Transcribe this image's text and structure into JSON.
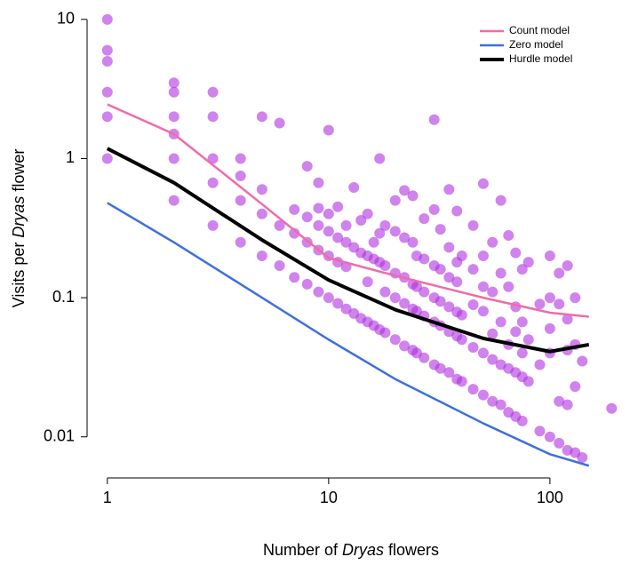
{
  "chart_data": {
    "type": "scatter",
    "xlabel": [
      "Number of ",
      "Dryas",
      " flowers"
    ],
    "ylabel": [
      "Visits per ",
      "Dryas",
      " flower"
    ],
    "xlog": true,
    "ylog": true,
    "xlim": [
      0.81,
      193
    ],
    "ylim": [
      0.0066,
      11.9
    ],
    "xticks": [
      1,
      10,
      100
    ],
    "yticks": [
      0.01,
      0.1,
      1,
      10
    ],
    "legend": "top-right",
    "points": {
      "color": "#b030e0",
      "x": [
        1,
        1,
        1,
        1,
        1,
        1,
        2,
        2,
        2,
        2,
        2,
        2,
        3,
        3,
        3,
        3,
        3,
        4,
        4,
        4,
        4,
        5,
        5,
        5,
        5,
        6,
        6,
        6,
        7,
        7,
        7,
        8,
        8,
        8,
        8,
        9,
        9,
        9,
        9,
        9,
        10,
        10,
        10,
        10,
        10,
        11,
        11,
        11,
        11,
        12,
        12,
        12,
        12,
        13,
        13,
        13,
        14,
        14,
        14,
        15,
        15,
        15,
        15,
        16,
        16,
        16,
        17,
        17,
        17,
        17,
        18,
        18,
        18,
        18,
        20,
        20,
        20,
        20,
        20,
        22,
        22,
        22,
        22,
        22,
        24,
        24,
        24,
        24,
        24,
        25,
        25,
        25,
        25,
        27,
        27,
        27,
        27,
        27,
        30,
        30,
        30,
        30,
        30,
        30,
        32,
        32,
        32,
        32,
        32,
        35,
        35,
        35,
        35,
        35,
        35,
        38,
        38,
        38,
        38,
        38,
        38,
        40,
        40,
        40,
        40,
        45,
        45,
        45,
        45,
        45,
        50,
        50,
        50,
        50,
        50,
        50,
        55,
        55,
        55,
        55,
        55,
        60,
        60,
        60,
        60,
        60,
        65,
        65,
        65,
        65,
        65,
        70,
        70,
        70,
        70,
        70,
        75,
        75,
        75,
        75,
        75,
        80,
        80,
        80,
        90,
        90,
        90,
        100,
        100,
        100,
        100,
        100,
        110,
        110,
        110,
        110,
        120,
        120,
        120,
        120,
        120,
        130,
        130,
        130,
        130,
        140,
        140,
        190
      ],
      "values": [
        10,
        6,
        5,
        3,
        2,
        1,
        3.5,
        3,
        2,
        1.5,
        1,
        0.5,
        3,
        2,
        1,
        0.67,
        0.33,
        1,
        0.75,
        0.5,
        0.25,
        2,
        0.6,
        0.4,
        0.2,
        1.8,
        0.33,
        0.17,
        0.43,
        0.29,
        0.14,
        0.88,
        0.38,
        0.25,
        0.125,
        0.67,
        0.44,
        0.33,
        0.22,
        0.11,
        1.6,
        0.4,
        0.3,
        0.2,
        0.1,
        0.45,
        0.27,
        0.18,
        0.091,
        0.33,
        0.25,
        0.167,
        0.083,
        0.62,
        0.23,
        0.077,
        0.36,
        0.21,
        0.071,
        0.4,
        0.2,
        0.13,
        0.067,
        0.25,
        0.19,
        0.063,
        1.0,
        0.29,
        0.18,
        0.059,
        0.33,
        0.17,
        0.11,
        0.056,
        0.5,
        0.3,
        0.15,
        0.1,
        0.05,
        0.59,
        0.27,
        0.14,
        0.091,
        0.045,
        0.54,
        0.25,
        0.125,
        0.083,
        0.042,
        0.2,
        0.12,
        0.08,
        0.04,
        0.37,
        0.19,
        0.11,
        0.074,
        0.037,
        1.9,
        0.43,
        0.17,
        0.1,
        0.067,
        0.033,
        0.31,
        0.16,
        0.094,
        0.063,
        0.031,
        0.6,
        0.23,
        0.14,
        0.086,
        0.057,
        0.029,
        0.42,
        0.18,
        0.13,
        0.079,
        0.053,
        0.026,
        0.2,
        0.075,
        0.05,
        0.025,
        0.33,
        0.16,
        0.089,
        0.044,
        0.022,
        0.66,
        0.2,
        0.12,
        0.08,
        0.04,
        0.02,
        0.25,
        0.11,
        0.055,
        0.036,
        0.018,
        0.5,
        0.15,
        0.067,
        0.033,
        0.017,
        0.28,
        0.12,
        0.046,
        0.031,
        0.015,
        0.21,
        0.086,
        0.057,
        0.029,
        0.014,
        0.16,
        0.067,
        0.04,
        0.027,
        0.013,
        0.18,
        0.05,
        0.025,
        0.09,
        0.033,
        0.011,
        0.2,
        0.1,
        0.06,
        0.04,
        0.01,
        0.15,
        0.09,
        0.018,
        0.009,
        0.17,
        0.07,
        0.042,
        0.017,
        0.008,
        0.1,
        0.046,
        0.023,
        0.0077,
        0.035,
        0.0071,
        0.016
      ]
    },
    "x": [
      1,
      2,
      5,
      10,
      20,
      50,
      100,
      150
    ],
    "series": [
      {
        "name": "Count model",
        "color": "#f06ba8",
        "width": 2.5,
        "values": [
          2.45,
          1.5,
          0.47,
          0.193,
          0.144,
          0.1,
          0.078,
          0.073
        ]
      },
      {
        "name": "Zero model",
        "color": "#3f6fdc",
        "width": 2.5,
        "values": [
          0.48,
          0.25,
          0.1,
          0.05,
          0.026,
          0.0125,
          0.0075,
          0.0062
        ]
      },
      {
        "name": "Hurdle model",
        "color": "#000000",
        "width": 4,
        "values": [
          1.18,
          0.67,
          0.26,
          0.134,
          0.082,
          0.051,
          0.041,
          0.046
        ]
      }
    ]
  }
}
